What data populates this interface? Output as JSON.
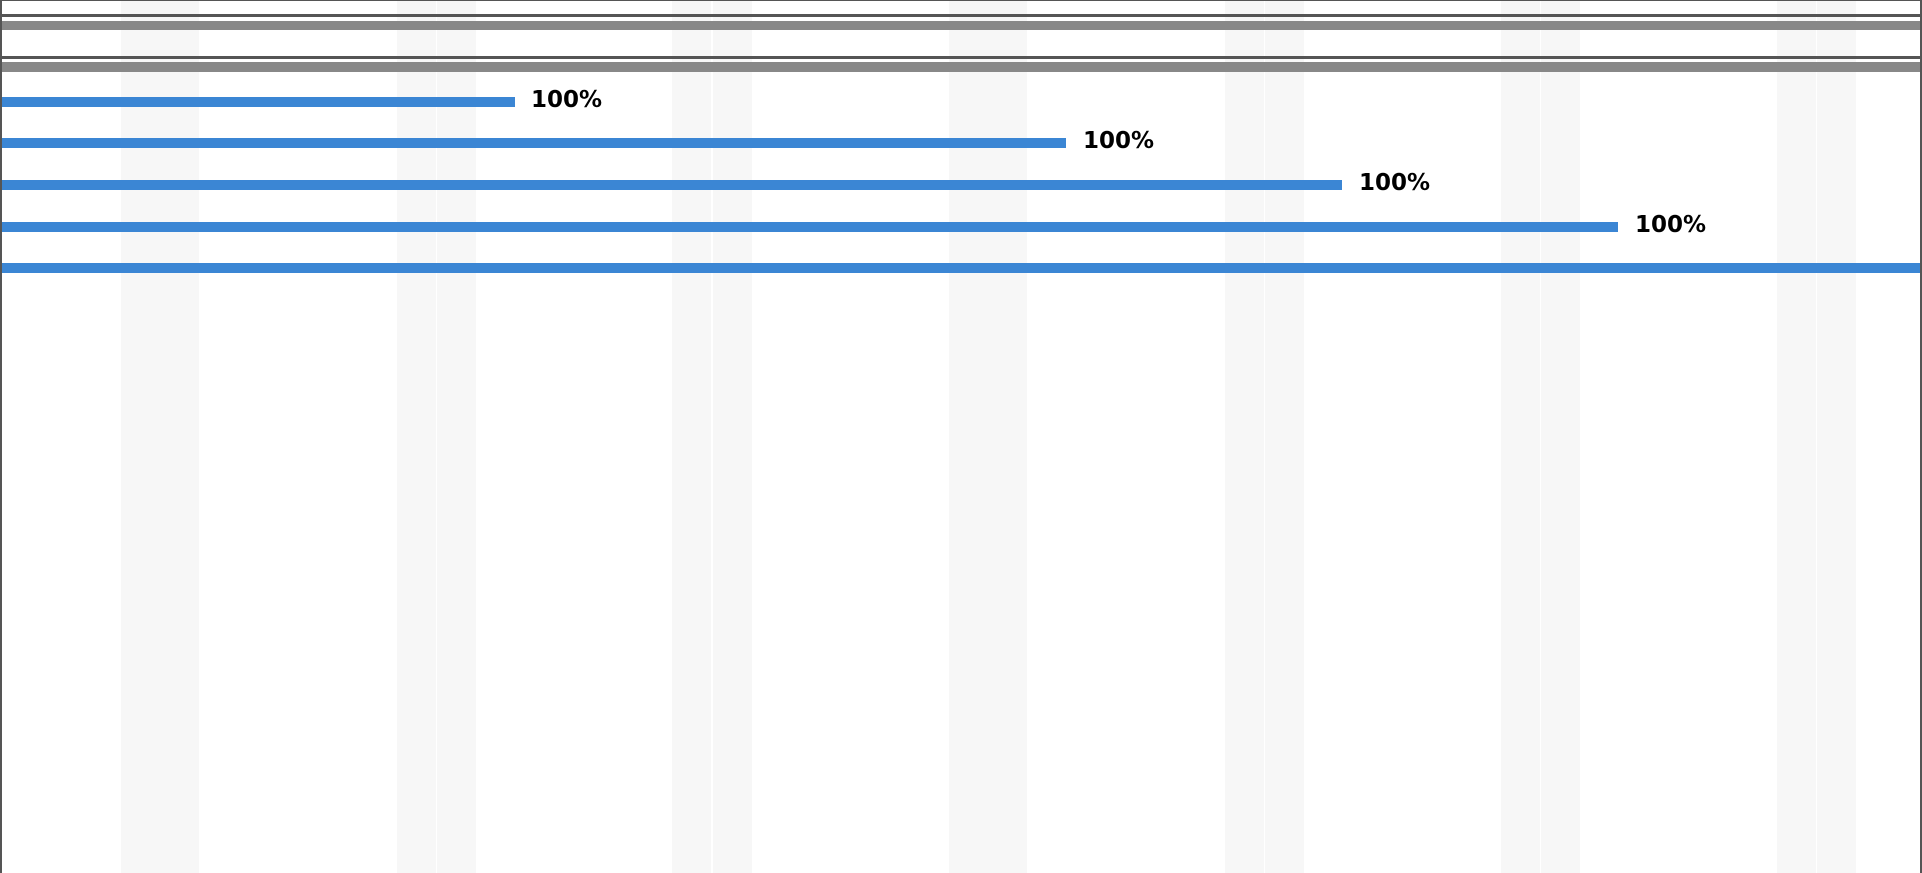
{
  "tasks": [
    {
      "progress_label": "100%"
    },
    {
      "progress_label": "100%"
    },
    {
      "progress_label": "100%"
    },
    {
      "progress_label": "100%"
    }
  ]
}
